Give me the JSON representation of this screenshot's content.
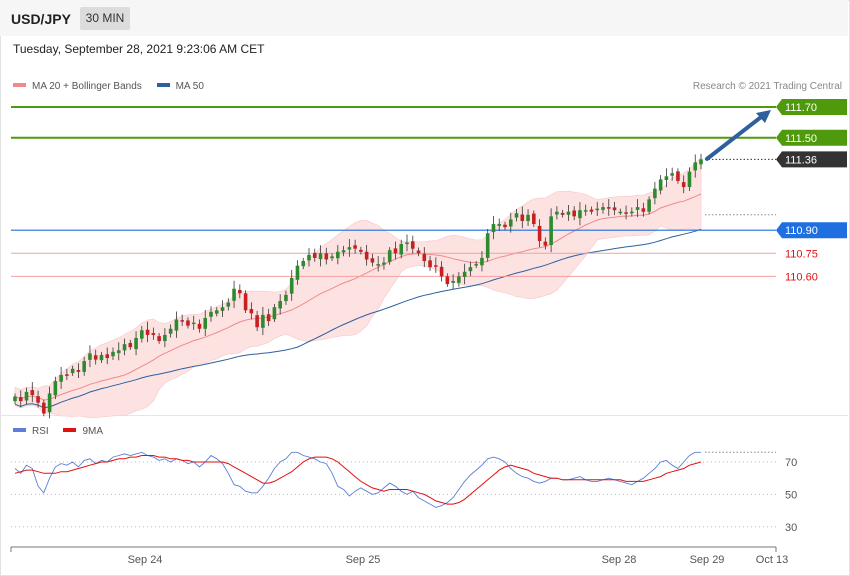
{
  "header": {
    "symbol": "USD/JPY",
    "timeframe": "30 MIN"
  },
  "date_line": "Tuesday, September 28, 2021 9:23:06 AM CET",
  "legend": [
    {
      "label": "MA 20 + Bollinger Bands",
      "color": "#f08a8a"
    },
    {
      "label": "MA 50",
      "color": "#2f5f9e"
    }
  ],
  "copyright": "Research © 2021 Trading Central",
  "rsi_legend": [
    {
      "label": "RSI",
      "color": "#5b7fd6"
    },
    {
      "label": "9MA",
      "color": "#e01010"
    }
  ],
  "colors": {
    "resistance": "#4f9a0c",
    "current": "#333333",
    "pivot": "#1f6fe0",
    "support": "#e01010",
    "candle_up": "#2e8a2e",
    "candle_down": "#c62020",
    "band_fill": "#fde2e2",
    "arrow": "#2f5f9e"
  },
  "chart_data": [
    {
      "type": "candlestick",
      "title": "USD/JPY 30 MIN",
      "y_range": [
        109.6,
        111.77
      ],
      "x_ticks": [
        "Sep 24",
        "Sep 25",
        "Sep 28",
        "Sep 29",
        "Oct 13"
      ],
      "levels": [
        {
          "value": 111.7,
          "label": "111.70",
          "kind": "resistance"
        },
        {
          "value": 111.5,
          "label": "111.50",
          "kind": "resistance"
        },
        {
          "value": 111.36,
          "label": "111.36",
          "kind": "current"
        },
        {
          "value": 110.9,
          "label": "110.90",
          "kind": "pivot"
        },
        {
          "value": 110.75,
          "label": "110.75",
          "kind": "support"
        },
        {
          "value": 110.6,
          "label": "110.60",
          "kind": "support"
        }
      ],
      "closes": [
        109.82,
        109.79,
        109.85,
        109.83,
        109.78,
        109.71,
        109.84,
        109.92,
        109.96,
        109.96,
        110.0,
        109.98,
        110.05,
        110.1,
        110.06,
        110.09,
        110.07,
        110.11,
        110.12,
        110.16,
        110.14,
        110.2,
        110.25,
        110.22,
        110.22,
        110.18,
        110.22,
        110.26,
        110.32,
        110.31,
        110.28,
        110.3,
        110.26,
        110.33,
        110.37,
        110.38,
        110.4,
        110.43,
        110.52,
        110.49,
        110.38,
        110.36,
        110.27,
        110.35,
        110.31,
        110.4,
        110.44,
        110.48,
        110.59,
        110.67,
        110.7,
        110.74,
        110.72,
        110.75,
        110.71,
        110.73,
        110.76,
        110.77,
        110.79,
        110.78,
        110.76,
        110.71,
        110.69,
        110.68,
        110.69,
        110.77,
        110.75,
        110.81,
        110.82,
        110.78,
        110.75,
        110.7,
        110.66,
        110.67,
        110.6,
        110.55,
        110.57,
        110.6,
        110.63,
        110.66,
        110.68,
        110.72,
        110.88,
        110.94,
        110.94,
        110.92,
        110.97,
        111.01,
        110.96,
        111.0,
        110.94,
        110.83,
        110.8,
        110.99,
        111.02,
        111.0,
        111.02,
        110.99,
        111.03,
        111.03,
        111.02,
        111.04,
        111.05,
        111.04,
        111.03,
        111.02,
        111.01,
        111.02,
        111.05,
        111.02,
        111.1,
        111.17,
        111.23,
        111.25,
        111.27,
        111.22,
        111.18,
        111.28,
        111.34,
        111.36
      ],
      "series": [
        {
          "name": "MA 20 + Bollinger Bands"
        },
        {
          "name": "MA 50"
        }
      ]
    },
    {
      "type": "line",
      "title": "RSI",
      "y_ticks": [
        70,
        50,
        30
      ],
      "y_range": [
        20,
        80
      ],
      "series": [
        {
          "name": "RSI",
          "values": [
            66,
            63,
            68,
            66,
            55,
            51,
            60,
            67,
            69,
            68,
            70,
            67,
            71,
            72,
            69,
            71,
            70,
            73,
            74,
            75,
            74,
            75,
            76,
            74,
            73,
            71,
            72,
            70,
            72,
            71,
            69,
            70,
            67,
            70,
            74,
            72,
            69,
            63,
            56,
            55,
            52,
            51,
            51,
            55,
            60,
            66,
            70,
            72,
            76,
            76,
            74,
            73,
            72,
            70,
            69,
            63,
            55,
            53,
            49,
            52,
            54,
            52,
            50,
            51,
            54,
            57,
            55,
            52,
            50,
            52,
            48,
            46,
            44,
            42,
            43,
            45,
            48,
            53,
            58,
            62,
            65,
            68,
            72,
            73,
            72,
            70,
            66,
            63,
            61,
            60,
            58,
            57,
            58,
            60,
            60,
            59,
            59,
            60,
            61,
            59,
            58,
            58,
            59,
            60,
            59,
            58,
            57,
            56,
            58,
            60,
            63,
            66,
            70,
            71,
            68,
            66,
            70,
            74,
            76,
            76
          ]
        },
        {
          "name": "9MA",
          "values": [
            63,
            64,
            65,
            65,
            64,
            63,
            63,
            63,
            64,
            64,
            65,
            66,
            67,
            68,
            69,
            70,
            70,
            71,
            72,
            72,
            73,
            73,
            74,
            74,
            74,
            73,
            73,
            72,
            72,
            71,
            71,
            70,
            70,
            70,
            70,
            70,
            70,
            69,
            67,
            65,
            63,
            61,
            59,
            57,
            57,
            58,
            60,
            62,
            64,
            67,
            70,
            72,
            73,
            73,
            73,
            72,
            70,
            67,
            64,
            61,
            58,
            56,
            54,
            53,
            52,
            53,
            53,
            53,
            53,
            52,
            51,
            50,
            48,
            46,
            45,
            44,
            44,
            45,
            47,
            50,
            53,
            56,
            59,
            62,
            65,
            67,
            68,
            67,
            66,
            65,
            63,
            62,
            61,
            60,
            60,
            59,
            59,
            59,
            59,
            59,
            59,
            59,
            59,
            59,
            59,
            59,
            58,
            58,
            58,
            58,
            59,
            60,
            61,
            63,
            64,
            65,
            66,
            68,
            69,
            70
          ]
        }
      ]
    }
  ]
}
